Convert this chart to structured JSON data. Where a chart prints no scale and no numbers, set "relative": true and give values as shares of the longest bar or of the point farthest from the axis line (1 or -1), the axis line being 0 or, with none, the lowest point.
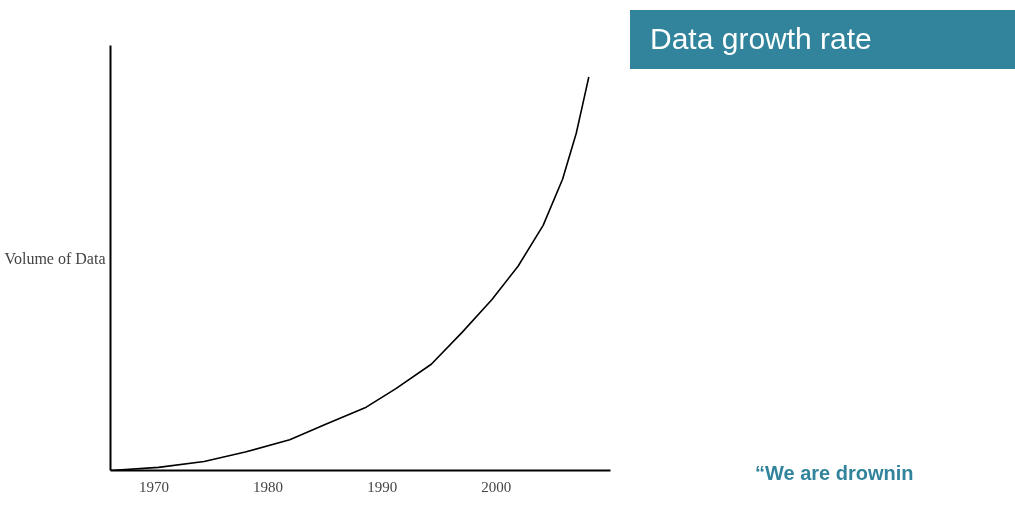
{
  "chart_data": {
    "type": "line",
    "title": "Data growth rate",
    "ylabel": "Volume of Data",
    "relative": true,
    "x": [
      1966.2,
      1970.4,
      1974.4,
      1978.0,
      1981.9,
      1985.0,
      1988.6,
      1991.2,
      1994.3,
      1997.0,
      1999.6,
      2001.9,
      2004.1,
      2005.8,
      2007.0,
      2007.6,
      2008.1
    ],
    "series": [
      {
        "color": "#000000",
        "values": [
          0,
          0.008,
          0.023,
          0.047,
          0.078,
          0.117,
          0.161,
          0.208,
          0.27,
          0.351,
          0.434,
          0.519,
          0.623,
          0.74,
          0.857,
          0.935,
          1.0
        ]
      }
    ],
    "xlim": [
      1966.2,
      2010
    ],
    "xticks": [
      1970,
      1980,
      1990,
      2000
    ],
    "grid": false,
    "annotations": [
      "“We are drownin"
    ]
  }
}
